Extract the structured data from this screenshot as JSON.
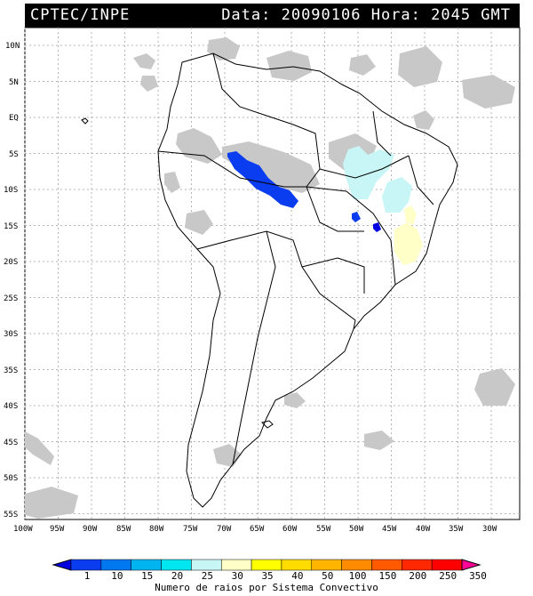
{
  "header": {
    "left": "CPTEC/INPE",
    "right": "Data: 20090106 Hora: 2045 GMT"
  },
  "axes": {
    "lat_labels": [
      "10N",
      "5N",
      "EQ",
      "5S",
      "10S",
      "15S",
      "20S",
      "25S",
      "30S",
      "35S",
      "40S",
      "45S",
      "50S",
      "55S"
    ],
    "lon_labels": [
      "100W",
      "95W",
      "90W",
      "85W",
      "80W",
      "75W",
      "70W",
      "65W",
      "60W",
      "55W",
      "50W",
      "45W",
      "40W",
      "35W",
      "30W"
    ]
  },
  "colorbar": {
    "labels": [
      "1",
      "10",
      "15",
      "20",
      "25",
      "30",
      "35",
      "40",
      "50",
      "100",
      "150",
      "200",
      "250",
      "350"
    ],
    "colors": [
      "#0000e0",
      "#0a3cf0",
      "#0078f0",
      "#00b4f0",
      "#00e6f0",
      "#c8f5f5",
      "#ffffc8",
      "#ffff00",
      "#ffdc00",
      "#ffb400",
      "#ff8c00",
      "#ff5a00",
      "#ff2800",
      "#ff0000",
      "#ff0096"
    ],
    "title": "Numero de raios por Sistema Convectivo"
  },
  "layers": {
    "cloud_color": "#c8c8c8",
    "land_outline_color": "#000000",
    "grid_color": "#b4b4b4"
  }
}
